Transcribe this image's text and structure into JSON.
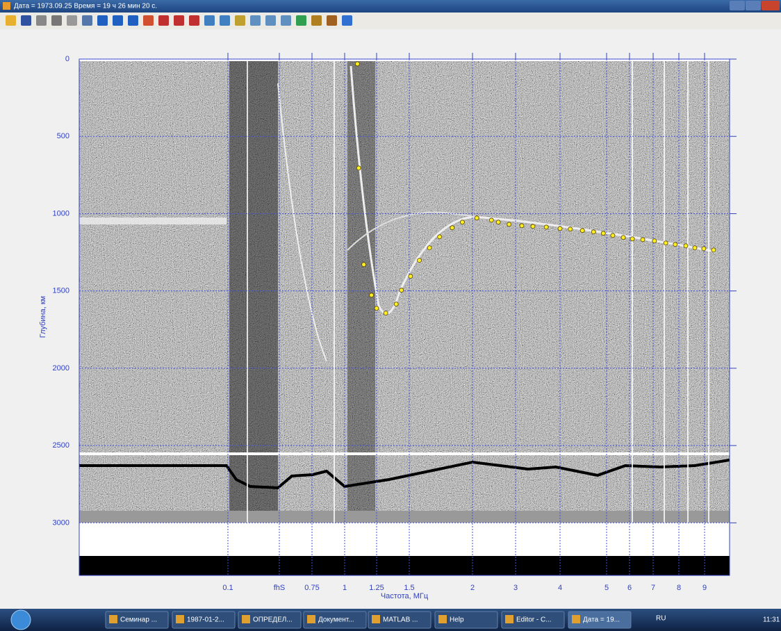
{
  "window": {
    "title": "Дата = 1973.09.25    Время = 19 ч 26 мин 20 с."
  },
  "chart_data": {
    "type": "scatter",
    "ylabel": "Глубина, км",
    "xlabel": "Частота, МГц",
    "ylim": [
      0,
      3340
    ],
    "yticks": [
      0,
      500,
      1000,
      1500,
      2000,
      2500,
      3000
    ],
    "xticks": [
      0.1,
      {
        "value": 0.5,
        "label": "fhS"
      },
      0.75,
      1,
      1.25,
      1.5,
      2,
      3,
      4,
      5,
      6,
      7,
      8,
      9
    ],
    "color": "#ffee22",
    "grid": true,
    "x": [
      1.1,
      1.11,
      1.15,
      1.21,
      1.25,
      1.32,
      1.4,
      1.44,
      1.51,
      1.58,
      1.66,
      1.74,
      1.84,
      1.92,
      2.1,
      2.44,
      2.6,
      2.85,
      3.14,
      3.39,
      3.69,
      4.0,
      4.22,
      4.48,
      4.72,
      4.93,
      5.27,
      5.73,
      6.12,
      6.56,
      7.05,
      7.49,
      7.86,
      8.27,
      8.62,
      8.97,
      9.35
    ],
    "values": [
      31,
      705,
      1329,
      1527,
      1612,
      1643,
      1585,
      1495,
      1405,
      1302,
      1221,
      1150,
      1091,
      1055,
      1028,
      1042,
      1055,
      1069,
      1078,
      1082,
      1087,
      1096,
      1100,
      1109,
      1118,
      1127,
      1141,
      1154,
      1163,
      1168,
      1176,
      1190,
      1199,
      1208,
      1221,
      1226,
      1235
    ]
  },
  "taskbar": {
    "items": [
      "Семинар ...",
      "1987-01-2...",
      "ОПРЕДЕЛ...",
      "Документ...",
      "MATLAB ...",
      "Help",
      "Editor - C...",
      "Дата = 19..."
    ],
    "language": "RU",
    "clock": "11:31"
  }
}
